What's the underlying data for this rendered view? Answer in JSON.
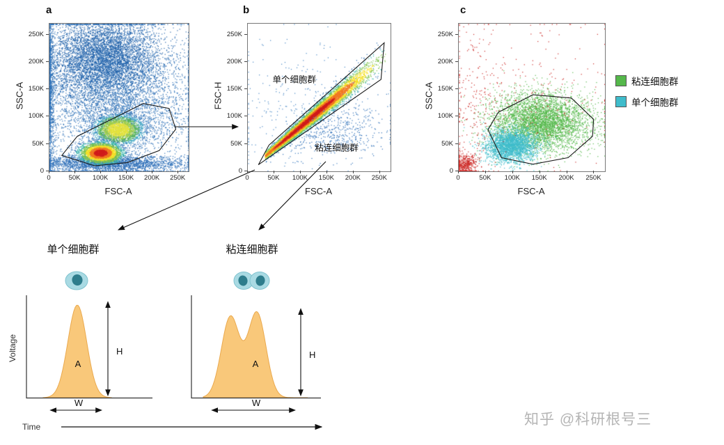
{
  "panels": {
    "a": {
      "label": "a",
      "xlabel": "FSC-A",
      "ylabel": "SSC-A"
    },
    "b": {
      "label": "b",
      "xlabel": "FSC-A",
      "ylabel": "FSC-H"
    },
    "c": {
      "label": "c",
      "xlabel": "FSC-A",
      "ylabel": "SSC-A"
    }
  },
  "legend": {
    "items": [
      {
        "label": "粘连细胞群",
        "color": "#55b84b"
      },
      {
        "label": "单个细胞群",
        "color": "#3fbccb"
      }
    ]
  },
  "pulse": {
    "ylabel": "Voltage",
    "xlabel": "Time",
    "fill_color": "#f9c87a",
    "stroke_color": "#eaa94e",
    "cell_icon": {
      "body": "#a9dae3",
      "nucleus": "#2e7d8c"
    },
    "single": {
      "title": "单个细胞群",
      "area": "A",
      "height": "H",
      "width": "W"
    },
    "double": {
      "title": "粘连细胞群",
      "area": "A",
      "height": "H",
      "width": "W"
    }
  },
  "watermark": {
    "text": "知乎 @科研根号三"
  },
  "palettes": {
    "heat": [
      "#d01c1c",
      "#f07820",
      "#f3df25",
      "#7cc24b",
      "#35b2a8",
      "#2a6db3"
    ],
    "heat_green": [
      "#e3e23c",
      "#9fce45",
      "#54b356",
      "#36a7c0",
      "#2a6db3"
    ]
  },
  "chart_data": [
    {
      "id": "a",
      "type": "density_scatter",
      "xlabel": "FSC-A",
      "ylabel": "SSC-A",
      "xlim": [
        0,
        270000
      ],
      "ylim": [
        0,
        270000
      ],
      "tick_values": [
        0,
        50000,
        100000,
        150000,
        200000,
        250000
      ],
      "tick_labels": [
        "0",
        "50K",
        "100K",
        "150K",
        "200K",
        "250K"
      ],
      "clusters": [
        {
          "n": 4800,
          "cx": 105000,
          "cy": 208000,
          "sx": 52000,
          "sy": 36000,
          "style": "#1e5fa8"
        },
        {
          "n": 2600,
          "cx": 118000,
          "cy": 158000,
          "sx": 80000,
          "sy": 52000,
          "style": "#2a6db3"
        },
        {
          "n": 1400,
          "cx": 140000,
          "cy": 95000,
          "sx": 62000,
          "sy": 34000,
          "style": "#2e72b8"
        },
        {
          "n": 700,
          "cx": 3000,
          "cy": 140000,
          "sx": 4000,
          "sy": 85000,
          "style": "#2a6db3"
        },
        {
          "n": 2400,
          "cx": 118000,
          "cy": 14000,
          "sx": 78000,
          "sy": 8000,
          "style": "#2e6fb8"
        },
        {
          "n": 900,
          "cx": 135000,
          "cy": 135000,
          "sx": 95000,
          "sy": 95000,
          "style": "#3f7fc2"
        },
        {
          "n": 2300,
          "cx": 133000,
          "cy": 77000,
          "sx": 23000,
          "sy": 13000,
          "style": "heat_green"
        },
        {
          "n": 3400,
          "cx": 99000,
          "cy": 34000,
          "sx": 20000,
          "sy": 9500,
          "style": "heat"
        }
      ],
      "gate": [
        [
          24000,
          29000
        ],
        [
          88000,
          10000
        ],
        [
          151000,
          16000
        ],
        [
          213000,
          38000
        ],
        [
          245000,
          77000
        ],
        [
          232000,
          115000
        ],
        [
          182000,
          124000
        ],
        [
          54000,
          64000
        ]
      ]
    },
    {
      "id": "b",
      "type": "density_scatter",
      "xlabel": "FSC-A",
      "ylabel": "FSC-H",
      "xlim": [
        0,
        270000
      ],
      "ylim": [
        0,
        270000
      ],
      "tick_values": [
        0,
        50000,
        100000,
        150000,
        200000,
        250000
      ],
      "tick_labels": [
        "0",
        "50K",
        "100K",
        "150K",
        "200K",
        "250K"
      ],
      "clusters": [
        {
          "kind": "diagonal",
          "n": 9500,
          "x0": 30000,
          "x1": 260000,
          "slope": 0.8,
          "intercept": 3000,
          "spread0": 3500,
          "spread1": 13000,
          "t_mean": 0.33,
          "t_sd": 0.24
        },
        {
          "n": 700,
          "cx": 150000,
          "cy": 78000,
          "sx": 55000,
          "sy": 26000,
          "style": "#2e6fb8",
          "keep_below": {
            "slope": 0.62,
            "intercept": 0
          }
        },
        {
          "n": 260,
          "cx": 100000,
          "cy": 130000,
          "sx": 70000,
          "sy": 60000,
          "style": "#4585c4"
        }
      ],
      "gate": [
        [
          20000,
          12000
        ],
        [
          252000,
          168000
        ],
        [
          258000,
          235000
        ],
        [
          40000,
          48000
        ]
      ],
      "labels": [
        {
          "text": "单个细胞群",
          "x": 88000,
          "y": 170000
        },
        {
          "text": "粘连细胞群",
          "x": 168000,
          "y": 44000
        }
      ]
    },
    {
      "id": "c",
      "type": "scatter",
      "xlabel": "FSC-A",
      "ylabel": "SSC-A",
      "xlim": [
        0,
        270000
      ],
      "ylim": [
        0,
        270000
      ],
      "tick_values": [
        0,
        50000,
        100000,
        150000,
        200000,
        250000
      ],
      "tick_labels": [
        "0",
        "50K",
        "100K",
        "150K",
        "200K",
        "250K"
      ],
      "series_legend": [
        {
          "name": "粘连细胞群",
          "color": "#55b84b"
        },
        {
          "name": "单个细胞群",
          "color": "#3fbccb"
        }
      ],
      "clusters": [
        {
          "n": 4300,
          "cx": 152000,
          "cy": 90000,
          "sx": 46000,
          "sy": 27000,
          "style": "#55b84b"
        },
        {
          "n": 2500,
          "cx": 96000,
          "cy": 47000,
          "sx": 23000,
          "sy": 15000,
          "style": "#3fbccb"
        },
        {
          "n": 430,
          "cx": 12000,
          "cy": 12000,
          "sx": 10000,
          "sy": 10000,
          "style": "#cc2a27"
        },
        {
          "n": 200,
          "cx": 25000,
          "cy": 110000,
          "sx": 22000,
          "sy": 75000,
          "style": "#cc2a27"
        },
        {
          "n": 240,
          "cx": 140000,
          "cy": 155000,
          "sx": 85000,
          "sy": 65000,
          "style": "#cc2a27"
        }
      ],
      "gate": [
        [
          54000,
          76000
        ],
        [
          79000,
          25000
        ],
        [
          137000,
          13000
        ],
        [
          202000,
          25000
        ],
        [
          247000,
          64000
        ],
        [
          249000,
          95000
        ],
        [
          208000,
          134000
        ],
        [
          137000,
          140000
        ],
        [
          73000,
          108000
        ]
      ]
    },
    {
      "id": "pulse_single",
      "type": "area",
      "title": "单个细胞群",
      "xlabel": "Time",
      "ylabel": "Voltage",
      "shape": "single_peak",
      "peaks": [
        {
          "center_frac": 0.4,
          "height_frac": 1.0,
          "width_frac": 0.1
        }
      ],
      "labels": [
        "A",
        "H",
        "W"
      ]
    },
    {
      "id": "pulse_double",
      "type": "area",
      "title": "粘连细胞群",
      "xlabel": "Time",
      "ylabel": "Voltage",
      "shape": "double_peak",
      "peaks": [
        {
          "center_frac": 0.3,
          "height_frac": 0.92
        },
        {
          "center_frac": 0.5,
          "height_frac": 1.0
        }
      ],
      "labels": [
        "A",
        "H",
        "W"
      ]
    }
  ]
}
